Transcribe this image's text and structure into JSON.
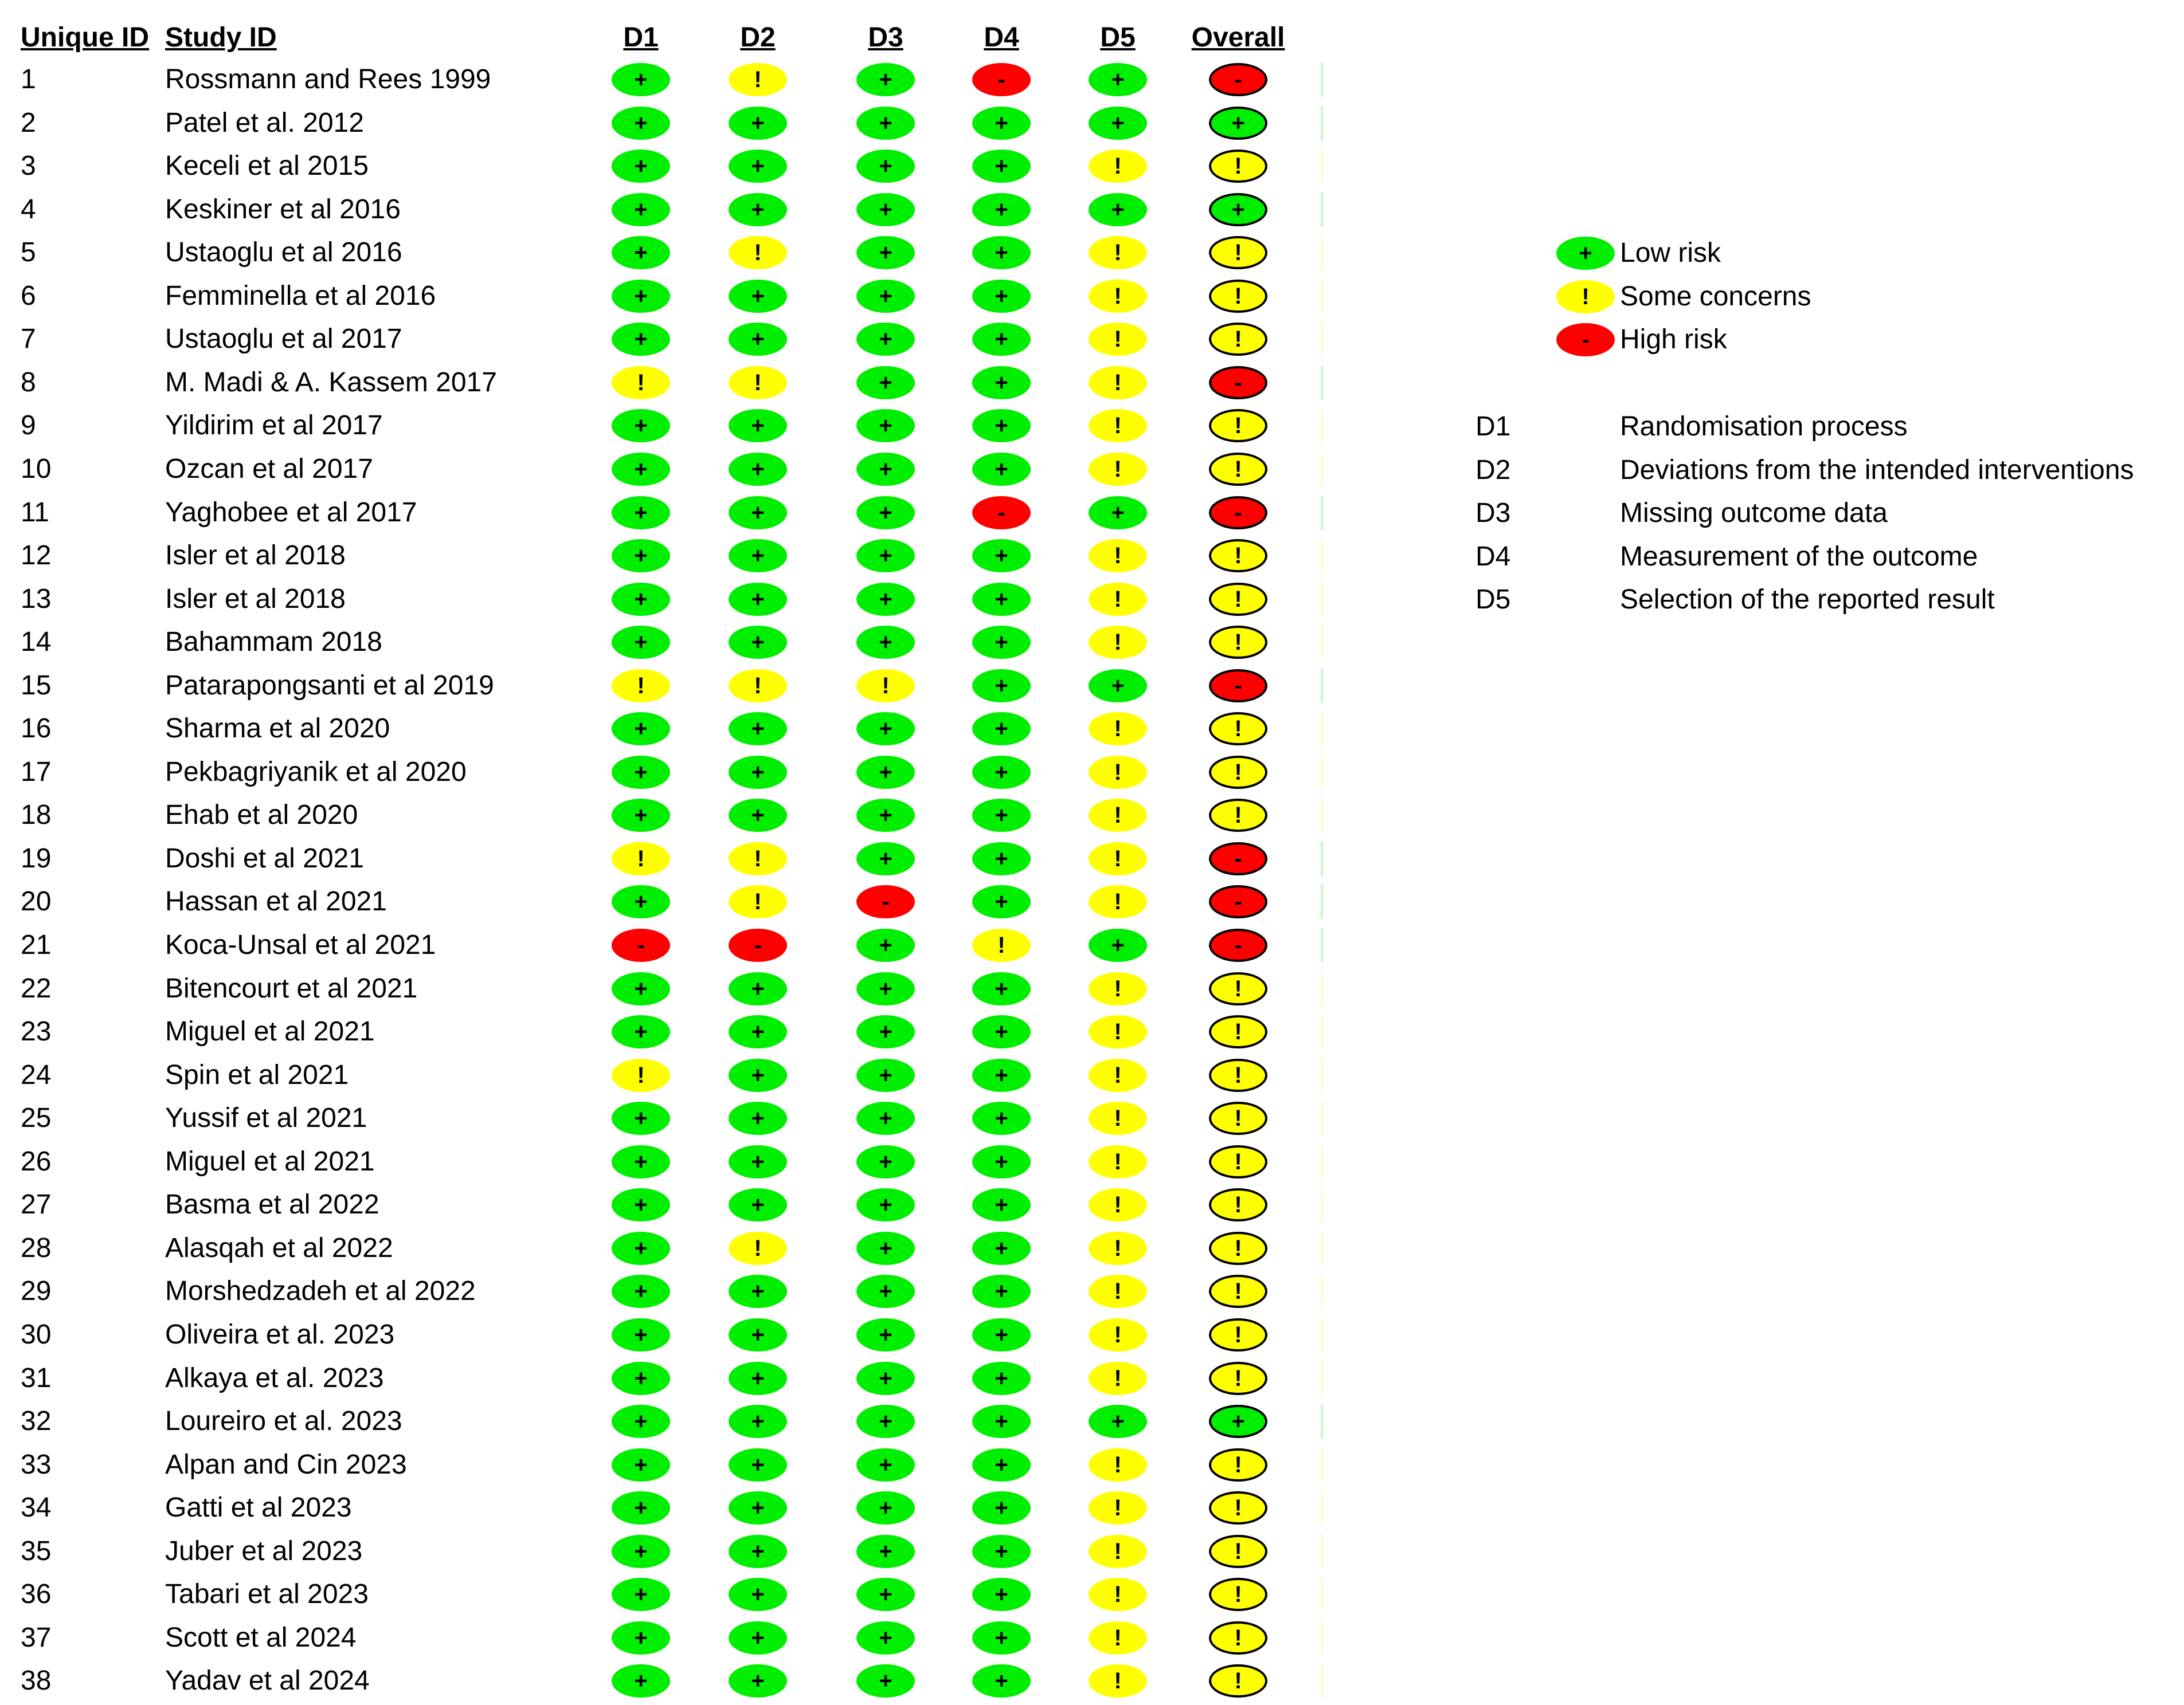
{
  "headers": {
    "unique_id": "Unique ID",
    "study_id": "Study ID",
    "domains": [
      "D1",
      "D2",
      "D3",
      "D4",
      "D5",
      "Overall"
    ]
  },
  "judgements": {
    "low": {
      "symbol": "+",
      "label": "Low risk",
      "color": "#00ee00"
    },
    "some": {
      "symbol": "!",
      "label": "Some concerns",
      "color": "#ffff00"
    },
    "high": {
      "symbol": "-",
      "label": "High risk",
      "color": "#ff0000"
    }
  },
  "legend": {
    "items": [
      "low",
      "some",
      "high"
    ],
    "domains": [
      {
        "code": "D1",
        "desc": "Randomisation process"
      },
      {
        "code": "D2",
        "desc": "Deviations from the intended interventions"
      },
      {
        "code": "D3",
        "desc": "Missing outcome data"
      },
      {
        "code": "D4",
        "desc": "Measurement of the outcome"
      },
      {
        "code": "D5",
        "desc": "Selection of the reported result"
      }
    ]
  },
  "rows": [
    {
      "id": "1",
      "study": "Rossmann and Rees 1999",
      "ratings": [
        "low",
        "some",
        "low",
        "high",
        "low",
        "high"
      ]
    },
    {
      "id": "2",
      "study": "Patel et al. 2012",
      "ratings": [
        "low",
        "low",
        "low",
        "low",
        "low",
        "low"
      ]
    },
    {
      "id": "3",
      "study": "Keceli et al 2015",
      "ratings": [
        "low",
        "low",
        "low",
        "low",
        "some",
        "some"
      ]
    },
    {
      "id": "4",
      "study": "Keskiner et al 2016",
      "ratings": [
        "low",
        "low",
        "low",
        "low",
        "low",
        "low"
      ]
    },
    {
      "id": "5",
      "study": "Ustaoglu et al 2016",
      "ratings": [
        "low",
        "some",
        "low",
        "low",
        "some",
        "some"
      ]
    },
    {
      "id": "6",
      "study": "Femminella et al 2016",
      "ratings": [
        "low",
        "low",
        "low",
        "low",
        "some",
        "some"
      ]
    },
    {
      "id": "7",
      "study": "Ustaoglu et al 2017",
      "ratings": [
        "low",
        "low",
        "low",
        "low",
        "some",
        "some"
      ]
    },
    {
      "id": "8",
      "study": "M. Madi & A. Kassem 2017",
      "ratings": [
        "some",
        "some",
        "low",
        "low",
        "some",
        "high"
      ]
    },
    {
      "id": "9",
      "study": "Yildirim et al 2017",
      "ratings": [
        "low",
        "low",
        "low",
        "low",
        "some",
        "some"
      ]
    },
    {
      "id": "10",
      "study": "Ozcan et al 2017",
      "ratings": [
        "low",
        "low",
        "low",
        "low",
        "some",
        "some"
      ]
    },
    {
      "id": "11",
      "study": "Yaghobee et al 2017",
      "ratings": [
        "low",
        "low",
        "low",
        "high",
        "low",
        "high"
      ]
    },
    {
      "id": "12",
      "study": "Isler et al 2018",
      "ratings": [
        "low",
        "low",
        "low",
        "low",
        "some",
        "some"
      ]
    },
    {
      "id": "13",
      "study": "Isler et al 2018",
      "ratings": [
        "low",
        "low",
        "low",
        "low",
        "some",
        "some"
      ]
    },
    {
      "id": "14",
      "study": "Bahammam 2018",
      "ratings": [
        "low",
        "low",
        "low",
        "low",
        "some",
        "some"
      ]
    },
    {
      "id": "15",
      "study": "Patarapongsanti et al 2019",
      "ratings": [
        "some",
        "some",
        "some",
        "low",
        "low",
        "high"
      ]
    },
    {
      "id": "16",
      "study": "Sharma et al 2020",
      "ratings": [
        "low",
        "low",
        "low",
        "low",
        "some",
        "some"
      ]
    },
    {
      "id": "17",
      "study": "Pekbagriyanik et al 2020",
      "ratings": [
        "low",
        "low",
        "low",
        "low",
        "some",
        "some"
      ]
    },
    {
      "id": "18",
      "study": "Ehab et al 2020",
      "ratings": [
        "low",
        "low",
        "low",
        "low",
        "some",
        "some"
      ]
    },
    {
      "id": "19",
      "study": "Doshi et al 2021",
      "ratings": [
        "some",
        "some",
        "low",
        "low",
        "some",
        "high"
      ]
    },
    {
      "id": "20",
      "study": "Hassan et al 2021",
      "ratings": [
        "low",
        "some",
        "high",
        "low",
        "some",
        "high"
      ]
    },
    {
      "id": "21",
      "study": "Koca-Unsal et al 2021",
      "ratings": [
        "high",
        "high",
        "low",
        "some",
        "low",
        "high"
      ]
    },
    {
      "id": "22",
      "study": "Bitencourt et al 2021",
      "ratings": [
        "low",
        "low",
        "low",
        "low",
        "some",
        "some"
      ]
    },
    {
      "id": "23",
      "study": "Miguel et al 2021",
      "ratings": [
        "low",
        "low",
        "low",
        "low",
        "some",
        "some"
      ]
    },
    {
      "id": "24",
      "study": "Spin et al 2021",
      "ratings": [
        "some",
        "low",
        "low",
        "low",
        "some",
        "some"
      ]
    },
    {
      "id": "25",
      "study": "Yussif et al 2021",
      "ratings": [
        "low",
        "low",
        "low",
        "low",
        "some",
        "some"
      ]
    },
    {
      "id": "26",
      "study": "Miguel et al 2021",
      "ratings": [
        "low",
        "low",
        "low",
        "low",
        "some",
        "some"
      ]
    },
    {
      "id": "27",
      "study": "Basma et al 2022",
      "ratings": [
        "low",
        "low",
        "low",
        "low",
        "some",
        "some"
      ]
    },
    {
      "id": "28",
      "study": "Alasqah et al 2022",
      "ratings": [
        "low",
        "some",
        "low",
        "low",
        "some",
        "some"
      ]
    },
    {
      "id": "29",
      "study": "Morshedzadeh et al 2022",
      "ratings": [
        "low",
        "low",
        "low",
        "low",
        "some",
        "some"
      ]
    },
    {
      "id": "30",
      "study": "Oliveira et al. 2023",
      "ratings": [
        "low",
        "low",
        "low",
        "low",
        "some",
        "some"
      ]
    },
    {
      "id": "31",
      "study": "Alkaya et al. 2023",
      "ratings": [
        "low",
        "low",
        "low",
        "low",
        "some",
        "some"
      ]
    },
    {
      "id": "32",
      "study": "Loureiro et al. 2023",
      "ratings": [
        "low",
        "low",
        "low",
        "low",
        "low",
        "low"
      ]
    },
    {
      "id": "33",
      "study": "Alpan and Cin 2023",
      "ratings": [
        "low",
        "low",
        "low",
        "low",
        "some",
        "some"
      ]
    },
    {
      "id": "34",
      "study": "Gatti et al 2023",
      "ratings": [
        "low",
        "low",
        "low",
        "low",
        "some",
        "some"
      ]
    },
    {
      "id": "35",
      "study": "Juber et al 2023",
      "ratings": [
        "low",
        "low",
        "low",
        "low",
        "some",
        "some"
      ]
    },
    {
      "id": "36",
      "study": "Tabari et al 2023",
      "ratings": [
        "low",
        "low",
        "low",
        "low",
        "some",
        "some"
      ]
    },
    {
      "id": "37",
      "study": "Scott et al 2024",
      "ratings": [
        "low",
        "low",
        "low",
        "low",
        "some",
        "some"
      ]
    },
    {
      "id": "38",
      "study": "Yadav et al 2024",
      "ratings": [
        "low",
        "low",
        "low",
        "low",
        "some",
        "some"
      ]
    }
  ]
}
